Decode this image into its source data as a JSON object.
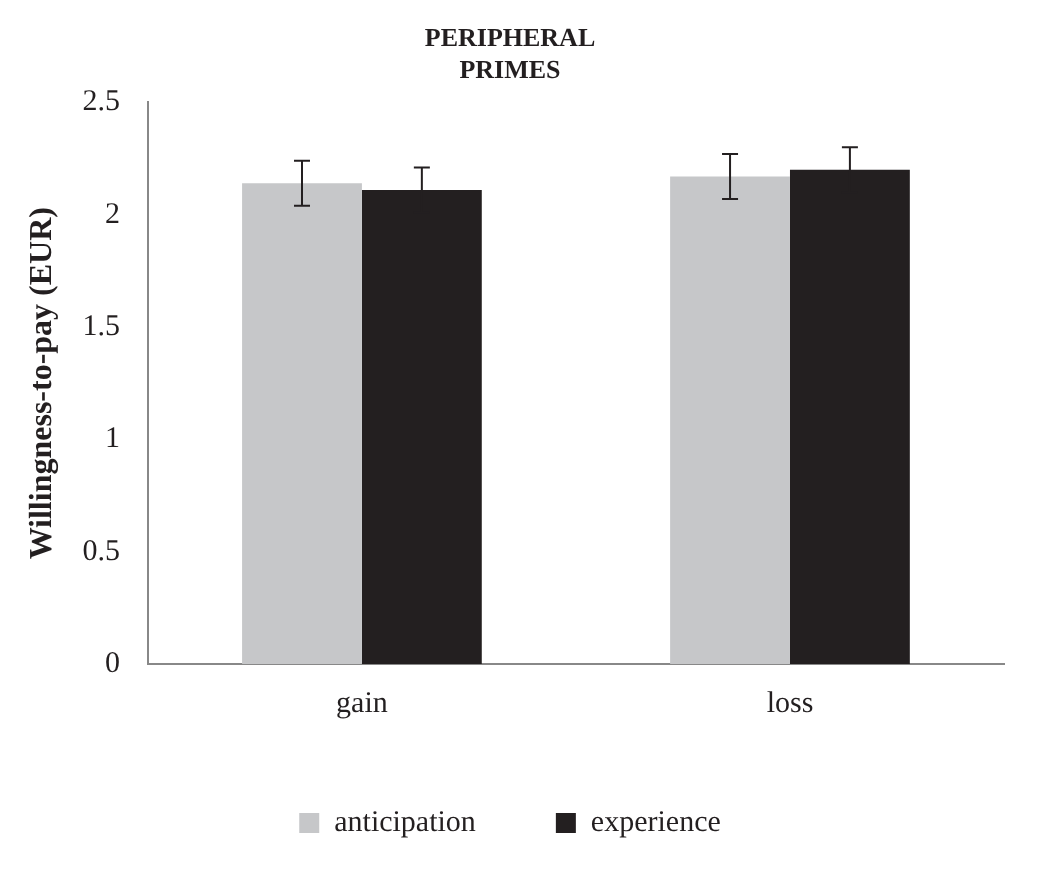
{
  "chart_data": {
    "type": "bar",
    "title": "PERIPHERAL\nPRIMES",
    "ylabel": "Willingness-to-pay (EUR)",
    "categories": [
      "gain",
      "loss"
    ],
    "series": [
      {
        "name": "anticipation",
        "color": "#c6c7c9",
        "values": [
          2.14,
          2.17
        ],
        "errors": [
          0.1,
          0.1
        ]
      },
      {
        "name": "experience",
        "color": "#231f20",
        "values": [
          2.11,
          2.2
        ],
        "errors": [
          0.1,
          0.1
        ]
      }
    ],
    "ylim": [
      0,
      2.5
    ],
    "yticks": [
      0,
      0.5,
      1,
      1.5,
      2,
      2.5
    ],
    "grid": false,
    "legend": "bottom"
  }
}
